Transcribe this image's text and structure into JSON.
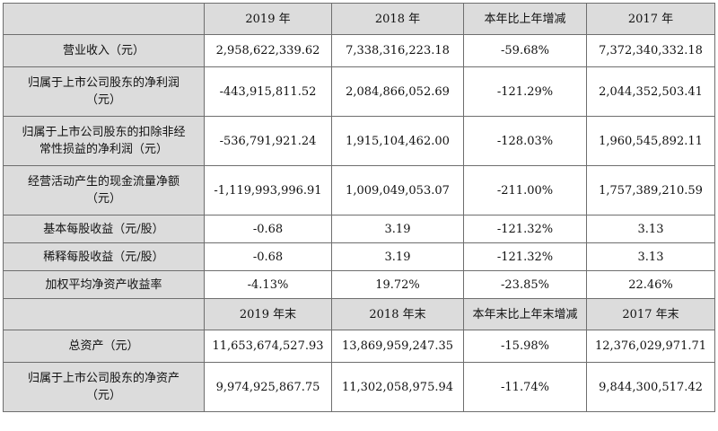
{
  "header1": {
    "label": "",
    "cols": [
      "2019 年",
      "2018 年",
      "本年比上年增减",
      "2017 年"
    ]
  },
  "rows1": [
    {
      "label": [
        "营业收入（元）"
      ],
      "values": [
        "2,958,622,339.62",
        "7,338,316,223.18",
        "-59.68%",
        "7,372,340,332.18"
      ],
      "kind": "r1"
    },
    {
      "label": [
        "归属于上市公司股东的净利润",
        "（元）"
      ],
      "values": [
        "-443,915,811.52",
        "2,084,866,052.69",
        "-121.29%",
        "2,044,352,503.41"
      ],
      "kind": "r2"
    },
    {
      "label": [
        "归属于上市公司股东的扣除非经",
        "常性损益的净利润（元）"
      ],
      "values": [
        "-536,791,921.24",
        "1,915,104,462.00",
        "-128.03%",
        "1,960,545,892.11"
      ],
      "kind": "r2"
    },
    {
      "label": [
        "经营活动产生的现金流量净额",
        "（元）"
      ],
      "values": [
        "-1,119,993,996.91",
        "1,009,049,053.07",
        "-211.00%",
        "1,757,389,210.59"
      ],
      "kind": "r2"
    },
    {
      "label": [
        "基本每股收益（元/股）"
      ],
      "values": [
        "-0.68",
        "3.19",
        "-121.32%",
        "3.13"
      ],
      "kind": "row-short"
    },
    {
      "label": [
        "稀释每股收益（元/股）"
      ],
      "values": [
        "-0.68",
        "3.19",
        "-121.32%",
        "3.13"
      ],
      "kind": "row-short"
    },
    {
      "label": [
        "加权平均净资产收益率"
      ],
      "values": [
        "-4.13%",
        "19.72%",
        "-23.85%",
        "22.46%"
      ],
      "kind": "row-short"
    }
  ],
  "header2": {
    "label": "",
    "cols": [
      "2019 年末",
      "2018 年末",
      "本年末比上年末增减",
      "2017 年末"
    ]
  },
  "rows2": [
    {
      "label": [
        "总资产（元）"
      ],
      "values": [
        "11,653,674,527.93",
        "13,869,959,247.35",
        "-15.98%",
        "12,376,029,971.71"
      ],
      "kind": "r1"
    },
    {
      "label": [
        "归属于上市公司股东的净资产",
        "（元）"
      ],
      "values": [
        "9,974,925,867.75",
        "11,302,058,975.94",
        "-11.74%",
        "9,844,300,517.42"
      ],
      "kind": "r2"
    }
  ]
}
